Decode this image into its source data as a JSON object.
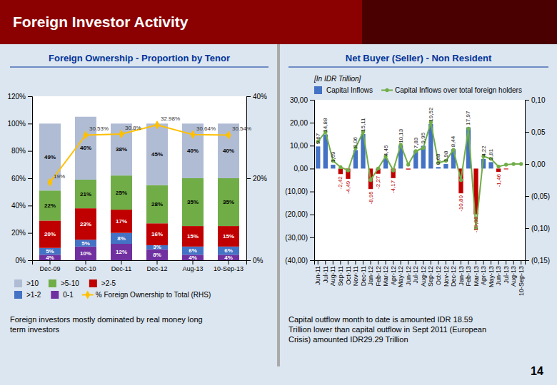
{
  "title": "Foreign Investor Activity",
  "annotations": [
    "14"
  ],
  "chart_data": [
    {
      "type": "bar",
      "title": "Foreign Ownership - Proportion by Tenor",
      "stacked": true,
      "grid": false,
      "legend": "bottom",
      "categories": [
        "Dec-09",
        "Dec-10",
        "Dec-11",
        "Dec-12",
        "Aug-13",
        "10-Sep-13"
      ],
      "series": [
        {
          "name": "0-1",
          "type": "bar",
          "color": "#7030a0",
          "values": [
            4,
            10,
            12,
            8,
            4,
            4
          ],
          "data_labels": true,
          "value_labels": [
            "4%",
            "10%",
            "12%",
            "8%",
            "4%",
            "4%"
          ]
        },
        {
          "name": ">1-2",
          "type": "bar",
          "color": "#4472c4",
          "values": [
            5,
            5,
            8,
            3,
            6,
            6
          ],
          "data_labels": true,
          "value_labels": [
            "5%",
            "5%",
            "8%",
            "3%",
            "6%",
            "6%"
          ]
        },
        {
          "name": ">2-5",
          "type": "bar",
          "color": "#c00000",
          "values": [
            20,
            23,
            17,
            16,
            15,
            15
          ],
          "data_labels": true,
          "value_labels": [
            "20%",
            "23%",
            "17%",
            "16%",
            "15%",
            "15%"
          ]
        },
        {
          "name": ">5-10",
          "type": "bar",
          "color": "#70ad47",
          "values": [
            22,
            21,
            25,
            28,
            35,
            35
          ],
          "data_labels": true,
          "value_labels": [
            "22%",
            "21%",
            "25%",
            "28%",
            "35%",
            "35%"
          ]
        },
        {
          "name": ">10",
          "type": "bar",
          "color": "#b0bcd4",
          "values": [
            49,
            46,
            38,
            45,
            40,
            40
          ],
          "data_labels": true,
          "value_labels": [
            "49%",
            "46%",
            "38%",
            "45%",
            "40%",
            "40%"
          ]
        },
        {
          "name": "% Foreign Ownership to Total (RHS)",
          "type": "line",
          "axis": "y2",
          "color": "#ffc000",
          "marker": "diamond",
          "values": [
            19,
            30.53,
            30.8,
            32.98,
            30.64,
            30.54
          ],
          "data_labels": true,
          "value_labels": [
            "19%",
            "30.53%",
            "30.8%",
            "32.98%",
            "30.64%",
            "30.54%"
          ]
        }
      ],
      "ylim": [
        0,
        120
      ],
      "yticks": [
        {
          "value": 0,
          "label": "0%"
        },
        {
          "value": 20,
          "label": "20%"
        },
        {
          "value": 40,
          "label": "40%"
        },
        {
          "value": 60,
          "label": "60%"
        },
        {
          "value": 80,
          "label": "80%"
        },
        {
          "value": 100,
          "label": "100%"
        },
        {
          "value": 120,
          "label": "120%"
        }
      ],
      "y2lim": [
        0,
        40
      ],
      "y2ticks": [
        {
          "value": 0,
          "label": "0%"
        },
        {
          "value": 20,
          "label": "20%"
        },
        {
          "value": 40,
          "label": "40%"
        }
      ],
      "annotations": [
        "Foreign investors mostly dominated by real money long\nterm investors"
      ]
    },
    {
      "type": "bar",
      "title": "Net Buyer (Seller) - Non Resident",
      "ylabel": "[In IDR Trillion]",
      "grid": false,
      "legend": "top",
      "categories": [
        "Jun-11",
        "Jul-11",
        "Aug-11",
        "Sep-11",
        "Oct-11",
        "Nov-11",
        "Dec-11",
        "Jan-12",
        "Feb-12",
        "Mar-12",
        "Apr-12",
        "May-12",
        "Jun-12",
        "Jul-12",
        "Aug-12",
        "Sep-12",
        "Oct-12",
        "Nov-12",
        "Dec-12",
        "Jan-13",
        "Feb-13",
        "Mar-13",
        "Apr-13",
        "May-13",
        "Jun-13",
        "Jul-13",
        "Aug-13",
        "10-Sep-13"
      ],
      "series": [
        {
          "name": "Capital Inflows",
          "type": "bar",
          "color": "#4472c4",
          "colors": [
            "#4472c4",
            "#4472c4",
            "#4472c4",
            "#c00000",
            "#c00000",
            "#4472c4",
            "#4472c4",
            "#c00000",
            "#c00000",
            "#4472c4",
            "#c00000",
            "#4472c4",
            "#c00000",
            "#4472c4",
            "#4472c4",
            "#4472c4",
            "#4472c4",
            "#4472c4",
            "#4472c4",
            "#c00000",
            "#4472c4",
            "#c00000",
            "#4472c4",
            "#4472c4",
            "#c00000",
            "#c00000",
            "#4472c4",
            "#4472c4"
          ],
          "values": [
            9.67,
            14.88,
            1.69,
            -2.42,
            -4.49,
            8.06,
            15.11,
            -8.95,
            -2.27,
            4.45,
            -4.17,
            10.13,
            -0.41,
            7.83,
            9.95,
            19.52,
            0.68,
            1.98,
            8.44,
            -10.8,
            17.97,
            -19.98,
            4.22,
            2.81,
            -1.46,
            -0.33,
            0.0,
            0.0
          ],
          "data_labels": true,
          "value_labels": [
            "9,67",
            "14,88",
            "1,69",
            "-2,42",
            "-4,49",
            "8,06",
            "15,11",
            "-8,95",
            "-2,27",
            "4,45",
            "-4,17",
            "10,13",
            null,
            "7,83",
            "9,95",
            "19,52",
            "0,68",
            "1,98",
            "8,44",
            "-10,80",
            "17,97",
            "-19,98",
            "4,22",
            "2,81",
            "-1,46",
            null,
            null,
            null
          ]
        },
        {
          "name": "Capital Inflows over total foreign holders",
          "type": "line",
          "axis": "y2",
          "color": "#70ad47",
          "marker": "circle",
          "values": [
            0.035,
            0.05,
            0.005,
            -0.005,
            -0.01,
            0.025,
            0.05,
            -0.025,
            -0.007,
            0.012,
            -0.01,
            0.03,
            -0.001,
            0.02,
            0.025,
            0.065,
            0.002,
            0.005,
            0.022,
            -0.025,
            0.055,
            -0.1,
            0.012,
            0.008,
            -0.004,
            -0.001,
            0.0,
            0.0
          ]
        }
      ],
      "ylim": [
        -40,
        30
      ],
      "yticks": [
        {
          "value": -40,
          "label": "(40,00)"
        },
        {
          "value": -30,
          "label": "(30,00)"
        },
        {
          "value": -20,
          "label": "(20,00)"
        },
        {
          "value": -10,
          "label": "(10,00)"
        },
        {
          "value": 0,
          "label": "0,00"
        },
        {
          "value": 10,
          "label": "10,00"
        },
        {
          "value": 20,
          "label": "20,00"
        },
        {
          "value": 30,
          "label": "30,00"
        }
      ],
      "y2lim": [
        -0.15,
        0.1
      ],
      "y2ticks": [
        {
          "value": -0.15,
          "label": "(0,15)"
        },
        {
          "value": -0.1,
          "label": "(0,10)"
        },
        {
          "value": -0.05,
          "label": "(0,05)"
        },
        {
          "value": 0.0,
          "label": "0,00"
        },
        {
          "value": 0.05,
          "label": "0,05"
        },
        {
          "value": 0.1,
          "label": "0,10"
        }
      ],
      "annotations": [
        "Capital outflow month to date is amounted IDR 18.59\nTrillion lower than capital outflow in Sept 2011 (European\nCrisis) amounted IDR29.29 Trillion"
      ]
    }
  ]
}
